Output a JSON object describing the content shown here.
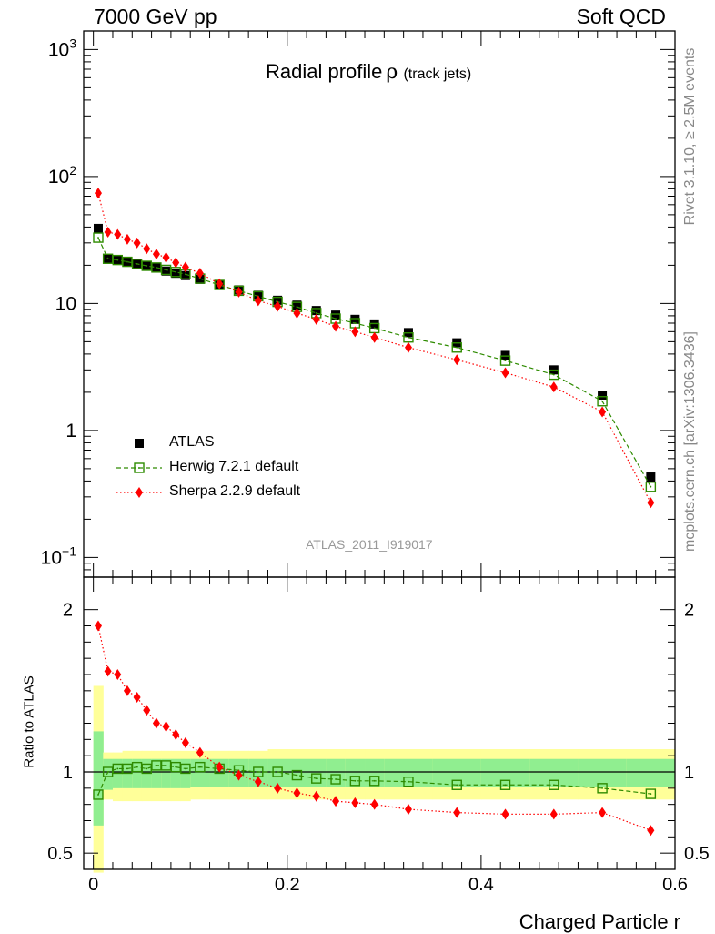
{
  "header": {
    "left": "7000 GeV pp",
    "right": "Soft QCD"
  },
  "side_labels": {
    "rivet": "Rivet 3.1.10, ≥ 2.5M events",
    "mcplots": "mcplots.cern.ch [arXiv:1306.3436]"
  },
  "colors": {
    "atlas": "#000000",
    "herwig": "#2e8b00",
    "sherpa": "#ff0000",
    "band_inner": "#90ee90",
    "band_outer": "#ffff99"
  },
  "chart_data": [
    {
      "type": "scatter",
      "title": "Radial profile",
      "title_symbol": "ρ",
      "title_suffix": "(track jets)",
      "watermark": "ATLAS_2011_I919017",
      "xlabel": "Charged Particle r",
      "ylabel": "",
      "yscale": "log",
      "xlim": [
        -0.01,
        0.6
      ],
      "ylim": [
        0.07,
        1400
      ],
      "yticks": [
        {
          "value": 0.1,
          "base": "10",
          "exp": "−1"
        },
        {
          "value": 1,
          "base": "1",
          "exp": ""
        },
        {
          "value": 10,
          "base": "10",
          "exp": ""
        },
        {
          "value": 100,
          "base": "10",
          "exp": "2"
        },
        {
          "value": 1000,
          "base": "10",
          "exp": "3"
        }
      ],
      "legend": {
        "position": "lower-left",
        "entries": [
          "ATLAS",
          "Herwig 7.2.1 default",
          "Sherpa 2.2.9 default"
        ]
      },
      "x": [
        0.005,
        0.015,
        0.025,
        0.035,
        0.045,
        0.055,
        0.065,
        0.075,
        0.085,
        0.095,
        0.11,
        0.13,
        0.15,
        0.17,
        0.19,
        0.21,
        0.23,
        0.25,
        0.27,
        0.29,
        0.325,
        0.375,
        0.425,
        0.475,
        0.525,
        0.575
      ],
      "series": [
        {
          "name": "ATLAS",
          "marker": "square-filled",
          "values": [
            39,
            22.5,
            22.0,
            21.3,
            20.5,
            19.8,
            19.0,
            18.0,
            17.3,
            16.6,
            15.5,
            14.0,
            12.8,
            11.6,
            10.6,
            9.7,
            8.8,
            8.1,
            7.5,
            6.9,
            5.9,
            4.9,
            3.9,
            3.0,
            1.9,
            0.43
          ]
        },
        {
          "name": "Herwig 7.2.1 default",
          "marker": "square-open",
          "line": "dashed",
          "values": [
            33,
            22.5,
            22.0,
            21.3,
            20.5,
            19.8,
            19.2,
            18.4,
            17.7,
            17.0,
            15.7,
            14.0,
            12.6,
            11.4,
            10.3,
            9.4,
            8.4,
            7.6,
            7.0,
            6.4,
            5.4,
            4.5,
            3.55,
            2.75,
            1.7,
            0.36
          ]
        },
        {
          "name": "Sherpa 2.2.9 default",
          "marker": "diamond-filled",
          "line": "dotted",
          "values": [
            74,
            36.5,
            35.0,
            32.0,
            30.0,
            27.0,
            24.5,
            23.0,
            21.0,
            19.3,
            17.3,
            14.3,
            12.3,
            10.5,
            9.5,
            8.4,
            7.5,
            6.6,
            6.0,
            5.4,
            4.5,
            3.6,
            2.85,
            2.2,
            1.4,
            0.27
          ]
        }
      ]
    },
    {
      "type": "scatter",
      "title": "",
      "xlabel": "Charged Particle r",
      "ylabel": "Ratio to ATLAS",
      "ylim": [
        0.4,
        2.2
      ],
      "xticks": [
        0,
        0.2,
        0.4,
        0.6
      ],
      "xtick_labels": [
        "0",
        "0.2",
        "0.4",
        "0.6"
      ],
      "yticks": [
        0.5,
        1,
        2
      ],
      "ytick_labels": [
        "0.5",
        "1",
        "2"
      ],
      "reference_line": 1,
      "x": [
        0.005,
        0.015,
        0.025,
        0.035,
        0.045,
        0.055,
        0.065,
        0.075,
        0.085,
        0.095,
        0.11,
        0.13,
        0.15,
        0.17,
        0.19,
        0.21,
        0.23,
        0.25,
        0.27,
        0.29,
        0.325,
        0.375,
        0.425,
        0.475,
        0.525,
        0.575
      ],
      "series": [
        {
          "name": "Herwig 7.2.1 default",
          "marker": "square-open",
          "line": "dashed",
          "values": [
            0.86,
            1.0,
            1.02,
            1.02,
            1.03,
            1.02,
            1.04,
            1.04,
            1.03,
            1.02,
            1.03,
            1.02,
            1.01,
            1.0,
            1.0,
            0.98,
            0.96,
            0.955,
            0.945,
            0.945,
            0.94,
            0.92,
            0.92,
            0.92,
            0.9,
            0.865
          ]
        },
        {
          "name": "Sherpa 2.2.9 default",
          "marker": "diamond-filled",
          "line": "dotted",
          "values": [
            1.9,
            1.62,
            1.6,
            1.5,
            1.46,
            1.38,
            1.3,
            1.28,
            1.23,
            1.18,
            1.12,
            1.03,
            0.98,
            0.94,
            0.9,
            0.87,
            0.85,
            0.82,
            0.81,
            0.8,
            0.77,
            0.75,
            0.74,
            0.74,
            0.75,
            0.64
          ]
        }
      ],
      "uncertainty_bands": {
        "bins": [
          [
            0.0,
            0.01
          ],
          [
            0.01,
            0.02
          ],
          [
            0.02,
            0.03
          ],
          [
            0.03,
            0.04
          ],
          [
            0.04,
            0.05
          ],
          [
            0.05,
            0.06
          ],
          [
            0.06,
            0.07
          ],
          [
            0.07,
            0.08
          ],
          [
            0.08,
            0.09
          ],
          [
            0.09,
            0.1
          ],
          [
            0.1,
            0.12
          ],
          [
            0.12,
            0.14
          ],
          [
            0.14,
            0.16
          ],
          [
            0.16,
            0.18
          ],
          [
            0.18,
            0.2
          ],
          [
            0.2,
            0.22
          ],
          [
            0.22,
            0.24
          ],
          [
            0.24,
            0.26
          ],
          [
            0.26,
            0.28
          ],
          [
            0.28,
            0.3
          ],
          [
            0.3,
            0.35
          ],
          [
            0.35,
            0.4
          ],
          [
            0.4,
            0.45
          ],
          [
            0.45,
            0.5
          ],
          [
            0.5,
            0.55
          ],
          [
            0.55,
            0.6
          ]
        ],
        "inner": [
          [
            0.67,
            1.25
          ],
          [
            0.89,
            1.08
          ],
          [
            0.9,
            1.08
          ],
          [
            0.9,
            1.08
          ],
          [
            0.9,
            1.08
          ],
          [
            0.9,
            1.08
          ],
          [
            0.9,
            1.08
          ],
          [
            0.9,
            1.08
          ],
          [
            0.9,
            1.08
          ],
          [
            0.9,
            1.08
          ],
          [
            0.905,
            1.08
          ],
          [
            0.905,
            1.08
          ],
          [
            0.905,
            1.08
          ],
          [
            0.905,
            1.08
          ],
          [
            0.905,
            1.08
          ],
          [
            0.905,
            1.08
          ],
          [
            0.905,
            1.08
          ],
          [
            0.905,
            1.08
          ],
          [
            0.905,
            1.08
          ],
          [
            0.905,
            1.08
          ],
          [
            0.905,
            1.08
          ],
          [
            0.905,
            1.08
          ],
          [
            0.905,
            1.08
          ],
          [
            0.905,
            1.08
          ],
          [
            0.905,
            1.08
          ],
          [
            0.905,
            1.08
          ]
        ],
        "outer": [
          [
            0.38,
            1.53
          ],
          [
            0.83,
            1.12
          ],
          [
            0.82,
            1.12
          ],
          [
            0.82,
            1.13
          ],
          [
            0.82,
            1.13
          ],
          [
            0.82,
            1.13
          ],
          [
            0.82,
            1.13
          ],
          [
            0.82,
            1.13
          ],
          [
            0.82,
            1.13
          ],
          [
            0.82,
            1.13
          ],
          [
            0.83,
            1.13
          ],
          [
            0.83,
            1.13
          ],
          [
            0.83,
            1.13
          ],
          [
            0.83,
            1.13
          ],
          [
            0.83,
            1.14
          ],
          [
            0.83,
            1.14
          ],
          [
            0.83,
            1.14
          ],
          [
            0.83,
            1.14
          ],
          [
            0.83,
            1.14
          ],
          [
            0.83,
            1.14
          ],
          [
            0.83,
            1.14
          ],
          [
            0.83,
            1.14
          ],
          [
            0.83,
            1.14
          ],
          [
            0.83,
            1.14
          ],
          [
            0.83,
            1.14
          ],
          [
            0.83,
            1.14
          ]
        ]
      }
    }
  ]
}
